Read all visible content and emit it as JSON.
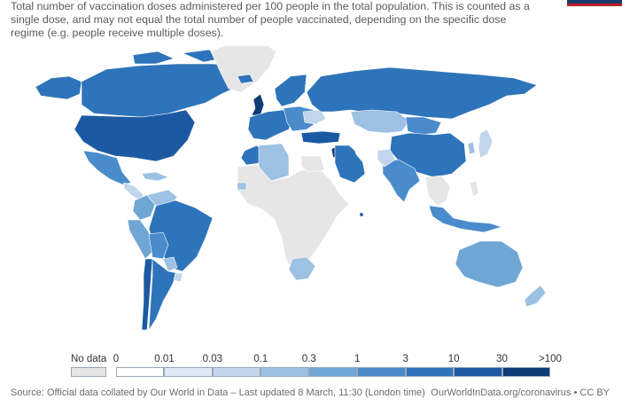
{
  "subtitle": "Total number of vaccination doses administered per 100 people in the total population. This is counted as a single dose, and may not equal the total number of people vaccinated, depending on the specific dose regime (e.g. people receive multiple doses).",
  "legend": {
    "no_data_label": "No data",
    "no_data_color": "#e6e6e6",
    "ticks": [
      "0",
      "0.01",
      "0.03",
      "0.1",
      "0.3",
      "1",
      "3",
      "10",
      "30",
      ">100"
    ],
    "colors": [
      "#ffffff",
      "#dfe9f5",
      "#c1d6ec",
      "#9cc1e3",
      "#6fa6d6",
      "#4a8ccb",
      "#2e74ba",
      "#1b5aa3",
      "#0d3c78"
    ]
  },
  "footer": {
    "source": "Source: Official data collated by Our World in Data – Last updated 8 March, 11:30 (London time)",
    "credit": "OurWorldInData.org/coronavirus • CC BY"
  },
  "regions": [
    {
      "name": "Alaska",
      "color": "#2e74ba"
    },
    {
      "name": "Canada",
      "color": "#2e74ba"
    },
    {
      "name": "Greenland",
      "color": "#e6e6e6"
    },
    {
      "name": "United States",
      "color": "#1b5aa3"
    },
    {
      "name": "Mexico",
      "color": "#4a8ccb"
    },
    {
      "name": "Central America",
      "color": "#c1d6ec"
    },
    {
      "name": "Caribbean",
      "color": "#9cc1e3"
    },
    {
      "name": "Colombia",
      "color": "#6fa6d6"
    },
    {
      "name": "Venezuela",
      "color": "#9cc1e3"
    },
    {
      "name": "Peru",
      "color": "#6fa6d6"
    },
    {
      "name": "Brazil",
      "color": "#2e74ba"
    },
    {
      "name": "Bolivia",
      "color": "#4a8ccb"
    },
    {
      "name": "Paraguay",
      "color": "#9cc1e3"
    },
    {
      "name": "Chile",
      "color": "#1b5aa3"
    },
    {
      "name": "Argentina",
      "color": "#2e74ba"
    },
    {
      "name": "Uruguay",
      "color": "#c1d6ec"
    },
    {
      "name": "Iceland",
      "color": "#2e74ba"
    },
    {
      "name": "Scandinavia",
      "color": "#2e74ba"
    },
    {
      "name": "United Kingdom",
      "color": "#0d3c78"
    },
    {
      "name": "Western Europe",
      "color": "#2e74ba"
    },
    {
      "name": "Eastern Europe",
      "color": "#4a8ccb"
    },
    {
      "name": "Ukraine",
      "color": "#c1d6ec"
    },
    {
      "name": "Russia",
      "color": "#2e74ba"
    },
    {
      "name": "Turkey",
      "color": "#1b5aa3"
    },
    {
      "name": "Israel",
      "color": "#0d3c78"
    },
    {
      "name": "Middle East",
      "color": "#2e74ba"
    },
    {
      "name": "Iran",
      "color": "#ffffff"
    },
    {
      "name": "Kazakhstan",
      "color": "#9cc1e3"
    },
    {
      "name": "Central Asia",
      "color": "#ffffff"
    },
    {
      "name": "Mongolia",
      "color": "#4a8ccb"
    },
    {
      "name": "China",
      "color": "#2e74ba"
    },
    {
      "name": "Korea",
      "color": "#9cc1e3"
    },
    {
      "name": "Japan",
      "color": "#c1d6ec"
    },
    {
      "name": "India",
      "color": "#4a8ccb"
    },
    {
      "name": "Pakistan",
      "color": "#c1d6ec"
    },
    {
      "name": "Southeast Asia",
      "color": "#e6e6e6"
    },
    {
      "name": "Indonesia",
      "color": "#4a8ccb"
    },
    {
      "name": "Philippines",
      "color": "#e6e6e6"
    },
    {
      "name": "Australia",
      "color": "#6fa6d6"
    },
    {
      "name": "New Zealand",
      "color": "#9cc1e3"
    },
    {
      "name": "Morocco",
      "color": "#2e74ba"
    },
    {
      "name": "Algeria",
      "color": "#9cc1e3"
    },
    {
      "name": "Africa",
      "color": "#e6e6e6"
    },
    {
      "name": "Egypt",
      "color": "#e6e6e6"
    },
    {
      "name": "Senegal",
      "color": "#9cc1e3"
    },
    {
      "name": "South Africa",
      "color": "#9cc1e3"
    },
    {
      "name": "Seychelles",
      "color": "#1b5aa3"
    }
  ]
}
